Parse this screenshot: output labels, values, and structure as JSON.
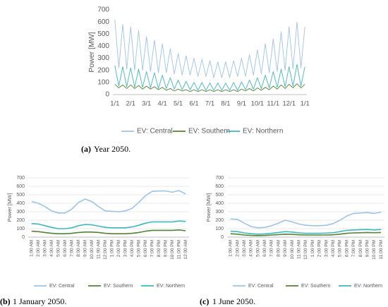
{
  "chart_data": [
    {
      "type": "line",
      "y_label": "Power [MW]",
      "caption_label": "(a)",
      "caption": "Year 2050.",
      "categories": [
        "1/1",
        null,
        null,
        null,
        "2/1",
        null,
        null,
        null,
        "3/1",
        null,
        null,
        null,
        "4/1",
        null,
        null,
        null,
        "5/1",
        null,
        null,
        null,
        "6/1",
        null,
        null,
        null,
        "7/1",
        null,
        null,
        null,
        "8/1",
        null,
        null,
        null,
        "9/1",
        null,
        null,
        null,
        "10/1",
        null,
        null,
        null,
        "11/1",
        null,
        null,
        null,
        "12/1",
        null,
        null,
        null,
        "1/1"
      ],
      "ylim": [
        0,
        700
      ],
      "yticks": [
        0,
        100,
        200,
        300,
        400,
        500,
        600,
        700
      ],
      "grid": false,
      "series": [
        {
          "name": "EV: Central",
          "color": "#9dc3e6",
          "values": [
            620,
            220,
            580,
            210,
            560,
            200,
            530,
            200,
            480,
            190,
            450,
            180,
            420,
            180,
            380,
            170,
            340,
            160,
            320,
            160,
            300,
            150,
            290,
            150,
            280,
            140,
            270,
            140,
            270,
            140,
            280,
            150,
            300,
            150,
            330,
            160,
            370,
            170,
            420,
            180,
            460,
            190,
            520,
            200,
            560,
            210,
            600,
            220,
            560
          ]
        },
        {
          "name": "EV: Southern",
          "color": "#548235",
          "values": [
            85,
            55,
            80,
            50,
            80,
            50,
            75,
            45,
            70,
            45,
            65,
            40,
            60,
            35,
            50,
            30,
            45,
            30,
            40,
            25,
            40,
            25,
            40,
            25,
            40,
            25,
            40,
            25,
            40,
            25,
            40,
            25,
            45,
            30,
            50,
            30,
            55,
            35,
            60,
            40,
            70,
            45,
            80,
            50,
            85,
            55,
            90,
            55,
            85
          ]
        },
        {
          "name": "EV: Northern",
          "color": "#3fb7bd",
          "values": [
            240,
            70,
            230,
            65,
            220,
            60,
            210,
            60,
            190,
            55,
            180,
            50,
            160,
            50,
            140,
            45,
            120,
            40,
            110,
            40,
            100,
            35,
            100,
            35,
            95,
            35,
            95,
            35,
            95,
            35,
            100,
            35,
            105,
            40,
            120,
            45,
            140,
            50,
            160,
            55,
            190,
            60,
            210,
            65,
            230,
            70,
            250,
            70,
            230
          ]
        }
      ]
    },
    {
      "type": "line",
      "y_label": "Power [MW]",
      "caption_label": "(b)",
      "caption": "1 January 2050.",
      "categories": [
        "1:00 AM",
        "2:00 AM",
        "3:00 AM",
        "4:00 AM",
        "5:00 AM",
        "6:00 AM",
        "7:00 AM",
        "8:00 AM",
        "9:00 AM",
        "10:00 AM",
        "11:00 AM",
        "12:00 PM",
        "1:00 PM",
        "2:00 PM",
        "3:00 PM",
        "4:00 PM",
        "5:00 PM",
        "6:00 PM",
        "7:00 PM",
        "8:00 PM",
        "9:00 PM",
        "10:00 PM",
        "11:00 PM",
        "12:00 AM"
      ],
      "ylim": [
        0,
        700
      ],
      "yticks": [
        0,
        100,
        200,
        300,
        400,
        500,
        600,
        700
      ],
      "grid": true,
      "series": [
        {
          "name": "EV: Central",
          "color": "#9dc3e6",
          "values": [
            420,
            400,
            360,
            310,
            285,
            285,
            330,
            410,
            450,
            420,
            360,
            310,
            305,
            300,
            310,
            340,
            410,
            490,
            540,
            545,
            545,
            530,
            550,
            510
          ]
        },
        {
          "name": "EV: Southern",
          "color": "#548235",
          "values": [
            70,
            65,
            55,
            45,
            40,
            40,
            45,
            55,
            60,
            60,
            55,
            45,
            40,
            40,
            40,
            45,
            55,
            70,
            80,
            80,
            80,
            80,
            85,
            75
          ]
        },
        {
          "name": "EV: Northern",
          "color": "#3fb7bd",
          "values": [
            160,
            155,
            135,
            115,
            100,
            100,
            110,
            135,
            150,
            145,
            130,
            115,
            110,
            110,
            110,
            120,
            140,
            165,
            180,
            180,
            180,
            180,
            190,
            185
          ]
        }
      ]
    },
    {
      "type": "line",
      "y_label": "Power [MW]",
      "caption_label": "(c)",
      "caption": "1 June 2050.",
      "categories": [
        "1:00 AM",
        "2:00 AM",
        "3:00 AM",
        "4:00 AM",
        "5:00 AM",
        "6:00 AM",
        "7:00 AM",
        "8:00 AM",
        "9:00 AM",
        "10:00 AM",
        "11:00 AM",
        "12:00 PM",
        "1:00 PM",
        "2:00 PM",
        "3:00 PM",
        "4:00 PM",
        "5:00 PM",
        "6:00 PM",
        "7:00 PM",
        "8:00 PM",
        "9:00 PM",
        "10:00 PM",
        "11:00 PM"
      ],
      "ylim": [
        0,
        700
      ],
      "yticks": [
        0,
        100,
        200,
        300,
        400,
        500,
        600,
        700
      ],
      "grid": true,
      "series": [
        {
          "name": "EV: Central",
          "color": "#9dc3e6",
          "values": [
            215,
            210,
            165,
            125,
            110,
            115,
            135,
            165,
            200,
            180,
            155,
            140,
            135,
            135,
            140,
            160,
            200,
            250,
            280,
            285,
            290,
            280,
            295
          ]
        },
        {
          "name": "EV: Southern",
          "color": "#548235",
          "values": [
            40,
            35,
            25,
            20,
            18,
            20,
            25,
            30,
            35,
            33,
            28,
            25,
            25,
            25,
            25,
            28,
            35,
            45,
            50,
            52,
            55,
            52,
            55
          ]
        },
        {
          "name": "EV: Northern",
          "color": "#3fb7bd",
          "values": [
            70,
            65,
            50,
            40,
            35,
            38,
            45,
            55,
            65,
            60,
            50,
            45,
            45,
            45,
            48,
            52,
            65,
            80,
            85,
            88,
            90,
            85,
            90
          ]
        }
      ]
    }
  ]
}
